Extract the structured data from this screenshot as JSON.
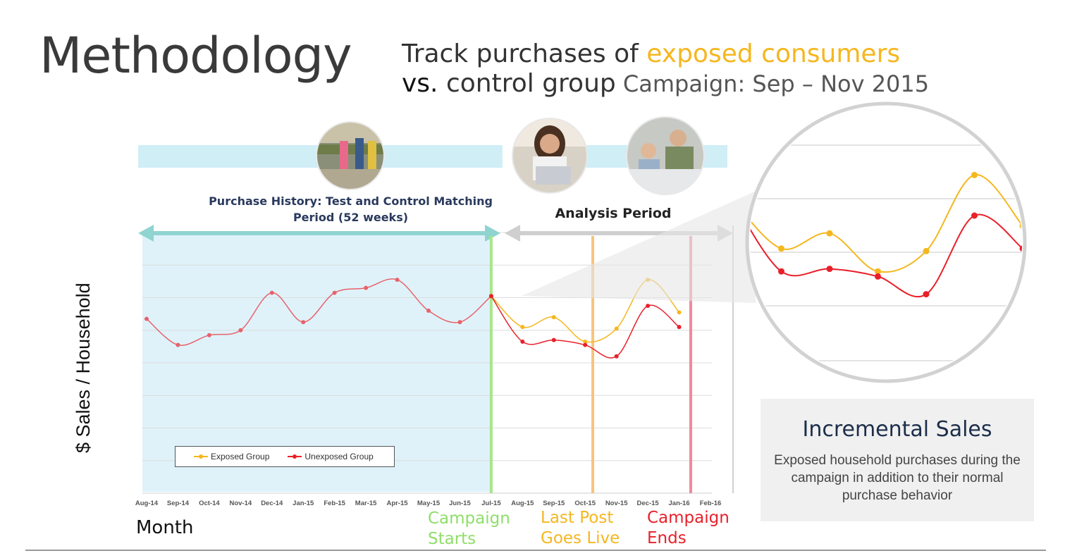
{
  "slide": {
    "title": "Methodology",
    "subtitle_line1_prefix": "Track purchases of ",
    "subtitle_line1_highlight": "exposed consumers",
    "subtitle_line2_vs": "vs.",
    "subtitle_line2_rest": " control group",
    "subtitle_campaign": " Campaign: Sep – Nov 2015"
  },
  "phases": {
    "history_label": "Purchase History: Test and Control Matching Period (52 weeks)",
    "analysis_label": "Analysis Period"
  },
  "axes": {
    "y_label": "$ Sales / Household",
    "x_label": "Month"
  },
  "events": {
    "campaign_starts": "Campaign\nStarts",
    "last_post": "Last Post\nGoes Live",
    "campaign_ends": "Campaign\nEnds"
  },
  "callout": {
    "title": "Incremental Sales",
    "text": "Exposed household purchases during the campaign in addition to their normal purchase behavior"
  },
  "colors": {
    "exposed": "#f5b71f",
    "unexposed": "#e8202a",
    "history_line": "#e8626a",
    "history_band": "#dff2fa",
    "band_strip": "#cfeef6",
    "teal_arrow": "#8fd4d0",
    "grey_arrow": "#cfcfcf",
    "campaign_start": "#a8e58a",
    "last_post": "#f8c47e",
    "campaign_end": "#f08a9a",
    "event_start_text": "#8fde6a",
    "event_post_text": "#f5b71f",
    "event_end_text": "#e8202a"
  },
  "icons": [
    "shoppers-photo",
    "laptop-woman-photo",
    "family-checkout-photo"
  ],
  "chart_data": {
    "type": "line",
    "categories": [
      "Aug-14",
      "Sep-14",
      "Oct-14",
      "Nov-14",
      "Dec-14",
      "Jan-15",
      "Feb-15",
      "Mar-15",
      "Apr-15",
      "May-15",
      "Jun-15",
      "Jul-15",
      "Aug-15",
      "Sep-15",
      "Oct-15",
      "Nov-15",
      "Dec-15",
      "Jan-16",
      "Feb-16"
    ],
    "series": [
      {
        "name": "Exposed Group",
        "values": [
          null,
          null,
          null,
          null,
          null,
          null,
          null,
          null,
          null,
          null,
          null,
          6.05,
          5.1,
          5.4,
          4.65,
          5.05,
          6.55,
          5.55,
          null
        ]
      },
      {
        "name": "Unexposed Group",
        "values": [
          null,
          null,
          null,
          null,
          null,
          null,
          null,
          null,
          null,
          null,
          null,
          6.05,
          4.65,
          4.7,
          4.55,
          4.2,
          5.75,
          5.1,
          null
        ]
      },
      {
        "name": "",
        "values": [
          5.35,
          4.55,
          4.85,
          5.0,
          6.15,
          5.25,
          6.15,
          6.3,
          6.55,
          5.6,
          5.25,
          6.05,
          null,
          null,
          null,
          null,
          null,
          null,
          null
        ]
      }
    ],
    "ylim": [
      0,
      8
    ],
    "grid": true,
    "legend": "bottom-left",
    "xlabel": "Month",
    "ylabel": "$ Sales / Household"
  }
}
